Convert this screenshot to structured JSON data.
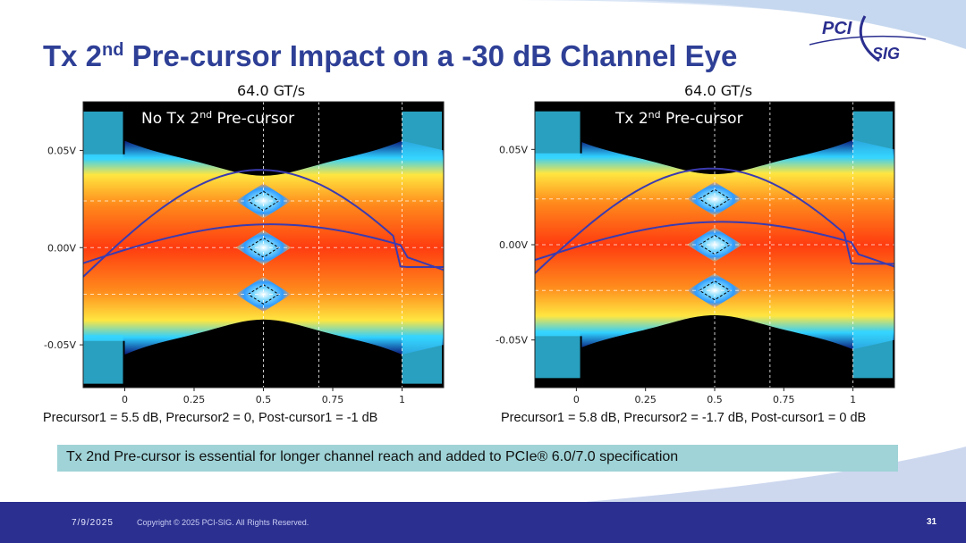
{
  "slide": {
    "title_pre": "Tx 2",
    "title_sup": "nd",
    "title_post": " Pre-cursor Impact on a -30 dB Channel Eye",
    "logo": {
      "line1": "PCI",
      "line2": "SIG"
    },
    "banner": "Tx 2nd Pre-cursor is essential for longer channel reach and added to PCIe® 6.0/7.0 specification",
    "footer": {
      "date": "7/9/2025",
      "copyright": "Copyright © 2025 PCI-SIG. All Rights Reserved.",
      "page": "31"
    },
    "colors": {
      "title": "#2e3f96",
      "banner": "#9fd3d7",
      "footer": "#2b2f8f",
      "curve": "#3b3bb0"
    }
  },
  "chart_data": [
    {
      "type": "heatmap",
      "title": "64.0 GT/s",
      "label_pre": "No Tx 2",
      "label_sup": "nd",
      "label_post": " Pre-cursor",
      "xlim": [
        -0.15,
        1.15
      ],
      "ylim": [
        -0.072,
        0.075
      ],
      "xticks": [
        0,
        0.25,
        0.5,
        0.75,
        1
      ],
      "xtick_labels": [
        "0",
        "0.25",
        "0.5",
        "0.75",
        "1"
      ],
      "yticks": [
        0.05,
        0.0,
        -0.05
      ],
      "ytick_labels": [
        "0.05V",
        "0.00V",
        "-0.05V"
      ],
      "eye_levels": [
        0.024,
        0.0,
        -0.024
      ],
      "caption": "Precursor1 = 5.5 dB, Precursor2 = 0, Post-cursor1 = -1 dB"
    },
    {
      "type": "heatmap",
      "title": "64.0 GT/s",
      "label_pre": "Tx 2",
      "label_sup": "nd",
      "label_post": " Pre-cursor",
      "xlim": [
        -0.15,
        1.15
      ],
      "ylim": [
        -0.075,
        0.075
      ],
      "xticks": [
        0,
        0.25,
        0.5,
        0.75,
        1
      ],
      "xtick_labels": [
        "0",
        "0.25",
        "0.5",
        "0.75",
        "1"
      ],
      "yticks": [
        0.05,
        0.0,
        -0.05
      ],
      "ytick_labels": [
        "0.05V",
        "0.00V",
        "-0.05V"
      ],
      "eye_levels": [
        0.024,
        0.0,
        -0.024
      ],
      "caption": "Precursor1 = 5.8 dB, Precursor2 = -1.7 dB, Post-cursor1 = 0 dB"
    }
  ]
}
